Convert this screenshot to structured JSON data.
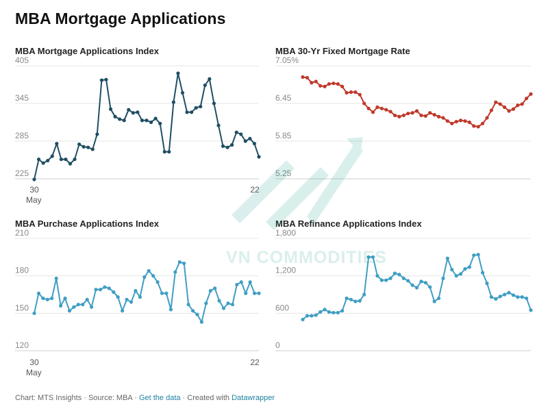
{
  "title": "MBA Mortgage Applications",
  "footer": {
    "prefix": "Chart: MTS Insights · Source: MBA · ",
    "get_data": "Get the data",
    "middle": " · Created with ",
    "tool": "Datawrapper"
  },
  "watermark": "VN COMMODITIES",
  "chart_data": [
    {
      "type": "line",
      "title": "MBA Mortgage Applications Index",
      "color": "#1f4e63",
      "ylim": [
        225,
        405
      ],
      "yticks": [
        "405",
        "345",
        "285",
        "225"
      ],
      "ytick_values": [
        405,
        345,
        285,
        225
      ],
      "xtick_start": "30",
      "xtick_start_sub": "May",
      "xtick_end": "22",
      "values": [
        224,
        256,
        250,
        254,
        261,
        281,
        256,
        256,
        249,
        256,
        280,
        276,
        275,
        272,
        296,
        382,
        383,
        336,
        324,
        320,
        318,
        335,
        330,
        331,
        318,
        318,
        315,
        321,
        313,
        268,
        268,
        347,
        393,
        362,
        331,
        331,
        338,
        340,
        374,
        384,
        345,
        310,
        277,
        275,
        279,
        299,
        296,
        285,
        289,
        281,
        260
      ]
    },
    {
      "type": "line",
      "title": "MBA 30-Yr Fixed Mortgage Rate",
      "color": "#c0392b",
      "ylim": [
        5.25,
        7.05
      ],
      "yticks": [
        "7.05%",
        "6.45",
        "5.85",
        "5.25"
      ],
      "ytick_values": [
        7.05,
        6.45,
        5.85,
        5.25
      ],
      "values": [
        6.87,
        6.86,
        6.78,
        6.8,
        6.73,
        6.72,
        6.76,
        6.77,
        6.76,
        6.72,
        6.62,
        6.63,
        6.63,
        6.59,
        6.45,
        6.37,
        6.31,
        6.39,
        6.37,
        6.35,
        6.32,
        6.26,
        6.24,
        6.26,
        6.29,
        6.3,
        6.33,
        6.26,
        6.25,
        6.3,
        6.27,
        6.24,
        6.22,
        6.17,
        6.13,
        6.16,
        6.18,
        6.17,
        6.15,
        6.09,
        6.08,
        6.13,
        6.22,
        6.34,
        6.47,
        6.44,
        6.39,
        6.33,
        6.36,
        6.42,
        6.44,
        6.53,
        6.6
      ]
    },
    {
      "type": "line",
      "title": "MBA Purchase Applications Index",
      "color": "#3f9ec4",
      "ylim": [
        120,
        210
      ],
      "yticks": [
        "210",
        "180",
        "150",
        "120"
      ],
      "ytick_values": [
        210,
        180,
        150,
        120
      ],
      "xtick_start": "30",
      "xtick_start_sub": "May",
      "xtick_end": "22",
      "values": [
        150,
        166,
        162,
        161,
        162,
        178,
        156,
        162,
        152,
        155,
        157,
        157,
        161,
        155,
        169,
        169,
        171,
        170,
        167,
        163,
        152,
        161,
        159,
        168,
        163,
        179,
        184,
        180,
        175,
        166,
        166,
        153,
        183,
        191,
        190,
        157,
        152,
        149,
        143,
        158,
        168,
        170,
        160,
        154,
        158,
        157,
        173,
        175,
        166,
        175,
        166,
        166
      ]
    },
    {
      "type": "line",
      "title": "MBA Refinance Applications Index",
      "color": "#3f9ec4",
      "ylim": [
        0,
        1800
      ],
      "yticks": [
        "1,800",
        "1,200",
        "600",
        "0"
      ],
      "ytick_values": [
        1800,
        1200,
        600,
        0
      ],
      "values": [
        500,
        560,
        560,
        570,
        620,
        660,
        620,
        610,
        610,
        640,
        840,
        820,
        790,
        800,
        900,
        1500,
        1500,
        1200,
        1130,
        1130,
        1160,
        1240,
        1220,
        1160,
        1120,
        1050,
        1010,
        1110,
        1090,
        1020,
        790,
        840,
        1160,
        1480,
        1300,
        1200,
        1230,
        1310,
        1340,
        1530,
        1540,
        1250,
        1080,
        860,
        830,
        870,
        900,
        930,
        890,
        860,
        860,
        840,
        650
      ]
    }
  ]
}
